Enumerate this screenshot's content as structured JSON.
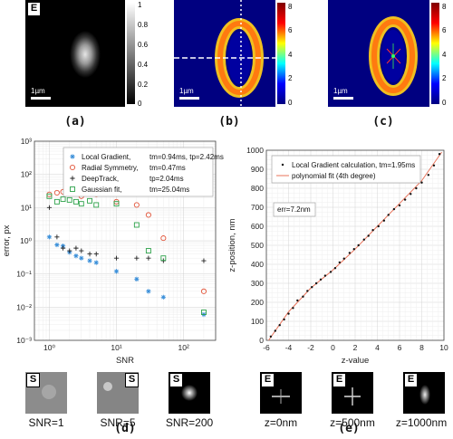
{
  "panels": {
    "a": {
      "caption": "(a)",
      "badge": "E",
      "scalebar": "1µm",
      "colorbar_ticks": [
        "1",
        "0.8",
        "0.6",
        "0.4",
        "0.2",
        "0"
      ]
    },
    "b": {
      "caption": "(b)",
      "scalebar": "1µm",
      "colorbar_ticks": [
        "8",
        "6",
        "4",
        "2",
        "0"
      ]
    },
    "c": {
      "caption": "(c)",
      "scalebar": "1µm",
      "colorbar_ticks": [
        "8",
        "6",
        "4",
        "2",
        "0"
      ]
    },
    "d": {
      "caption": "(d)"
    },
    "e": {
      "caption": "(e)"
    }
  },
  "thumbs_d": [
    {
      "badge": "S",
      "caption": "SNR=1"
    },
    {
      "badge": "S",
      "caption": "SNR=5"
    },
    {
      "badge": "S",
      "caption": "SNR=200"
    }
  ],
  "thumbs_e": [
    {
      "badge": "E",
      "caption": "z=0nm"
    },
    {
      "badge": "E",
      "caption": "z=500nm"
    },
    {
      "badge": "E",
      "caption": "z=1000nm"
    }
  ],
  "chart_data": [
    {
      "type": "scatter",
      "xlabel": "SNR",
      "ylabel": "error, px",
      "xscale": "log",
      "yscale": "log",
      "xlim": [
        0.6,
        300
      ],
      "ylim": [
        0.001,
        1000
      ],
      "xticks": [
        "10⁰",
        "10¹",
        "10²"
      ],
      "yticks": [
        "10⁻³",
        "10⁻²",
        "10⁻¹",
        "10⁰",
        "10¹",
        "10²",
        "10³"
      ],
      "grid": true,
      "legend_position": "top-right",
      "series": [
        {
          "name": "Local Gradient,",
          "timing": "tm=0.94ms, tp=2.42ms",
          "marker": "asterisk",
          "color": "#3a8fd9",
          "x": [
            1,
            1.3,
            1.6,
            2,
            2.5,
            3,
            4,
            5,
            10,
            20,
            30,
            50,
            200
          ],
          "y": [
            1.3,
            0.75,
            0.7,
            0.45,
            0.35,
            0.3,
            0.25,
            0.22,
            0.12,
            0.07,
            0.03,
            0.02,
            0.006
          ]
        },
        {
          "name": "Radial Symmetry,",
          "timing": "tm=0.47ms",
          "marker": "circle",
          "color": "#e2553a",
          "x": [
            1,
            1.3,
            1.6,
            2,
            2.5,
            3,
            4,
            5,
            10,
            20,
            30,
            50,
            200
          ],
          "y": [
            25,
            28,
            30,
            30,
            28,
            22,
            28,
            25,
            15,
            12,
            6,
            1.2,
            0.03
          ]
        },
        {
          "name": "DeepTrack,",
          "timing": "tp=2.04ms",
          "marker": "plus",
          "color": "#222222",
          "x": [
            1,
            1.3,
            1.6,
            2,
            2.5,
            3,
            4,
            5,
            10,
            20,
            30,
            50,
            200
          ],
          "y": [
            10,
            1.3,
            0.6,
            0.5,
            0.6,
            0.5,
            0.4,
            0.4,
            0.3,
            0.3,
            0.3,
            0.25,
            0.25
          ]
        },
        {
          "name": "Gaussian fit,",
          "timing": "tm=25.04ms",
          "marker": "square",
          "color": "#2da24a",
          "x": [
            1,
            1.3,
            1.6,
            2,
            2.5,
            3,
            4,
            5,
            10,
            20,
            30,
            50,
            200
          ],
          "y": [
            22,
            15,
            18,
            17,
            15,
            13,
            16,
            12,
            13,
            3,
            0.5,
            0.3,
            0.007
          ]
        }
      ]
    },
    {
      "type": "scatter",
      "xlabel": "z-value",
      "ylabel": "z-position, nm",
      "xlim": [
        -6,
        10
      ],
      "ylim": [
        0,
        1000
      ],
      "xticks": [
        "-6",
        "-4",
        "-2",
        "0",
        "2",
        "4",
        "6",
        "8",
        "10"
      ],
      "yticks": [
        "0",
        "100",
        "200",
        "300",
        "400",
        "500",
        "600",
        "700",
        "800",
        "900",
        "1000"
      ],
      "grid": true,
      "legend_position": "top-left",
      "annotation": "err=7.2nm",
      "series": [
        {
          "name": "Local Gradient calculation, tm=1.95ms",
          "marker": "dot",
          "color": "#111111",
          "x": [
            -5.6,
            -5.2,
            -4.8,
            -4.4,
            -4.0,
            -3.6,
            -3.2,
            -2.7,
            -2.3,
            -1.9,
            -1.5,
            -1.1,
            -0.7,
            -0.2,
            0.2,
            0.6,
            1.0,
            1.5,
            1.9,
            2.3,
            2.8,
            3.2,
            3.6,
            4.1,
            4.6,
            5.0,
            5.5,
            6.0,
            6.5,
            7.0,
            7.5,
            8.0,
            8.6,
            9.1,
            9.6
          ],
          "y": [
            20,
            50,
            80,
            110,
            140,
            170,
            210,
            230,
            260,
            280,
            300,
            320,
            340,
            360,
            380,
            410,
            430,
            460,
            480,
            500,
            530,
            550,
            580,
            600,
            630,
            660,
            690,
            710,
            740,
            770,
            800,
            830,
            870,
            920,
            980
          ]
        },
        {
          "name": "polynomial fit (4th degree)",
          "marker": "line",
          "color": "#e8735a",
          "x": [
            -5.8,
            -4,
            -2,
            0,
            2,
            4,
            6,
            8,
            9.8
          ],
          "y": [
            0,
            150,
            275,
            370,
            480,
            600,
            720,
            840,
            990
          ]
        }
      ]
    }
  ]
}
